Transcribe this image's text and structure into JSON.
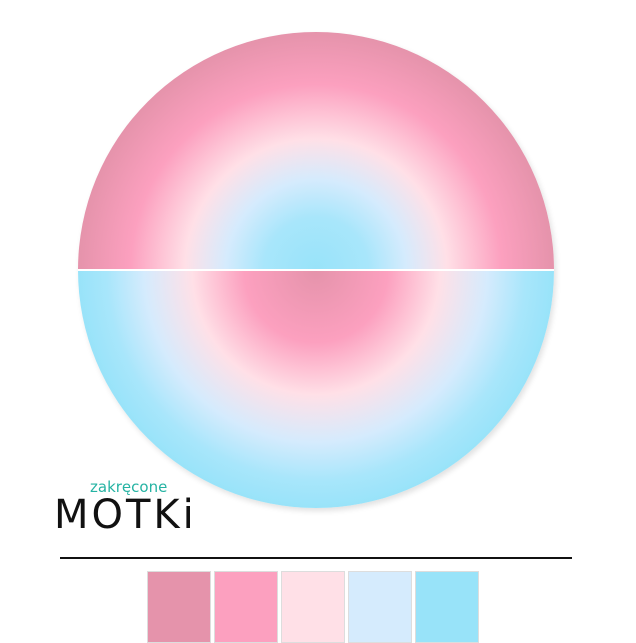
{
  "logo": {
    "tagline": "zakręcone",
    "name": "MOTKi"
  },
  "palette": {
    "colors": [
      "#e593ab",
      "#fca0bf",
      "#ffe0e7",
      "#d5ebfd",
      "#98e3f9"
    ]
  }
}
